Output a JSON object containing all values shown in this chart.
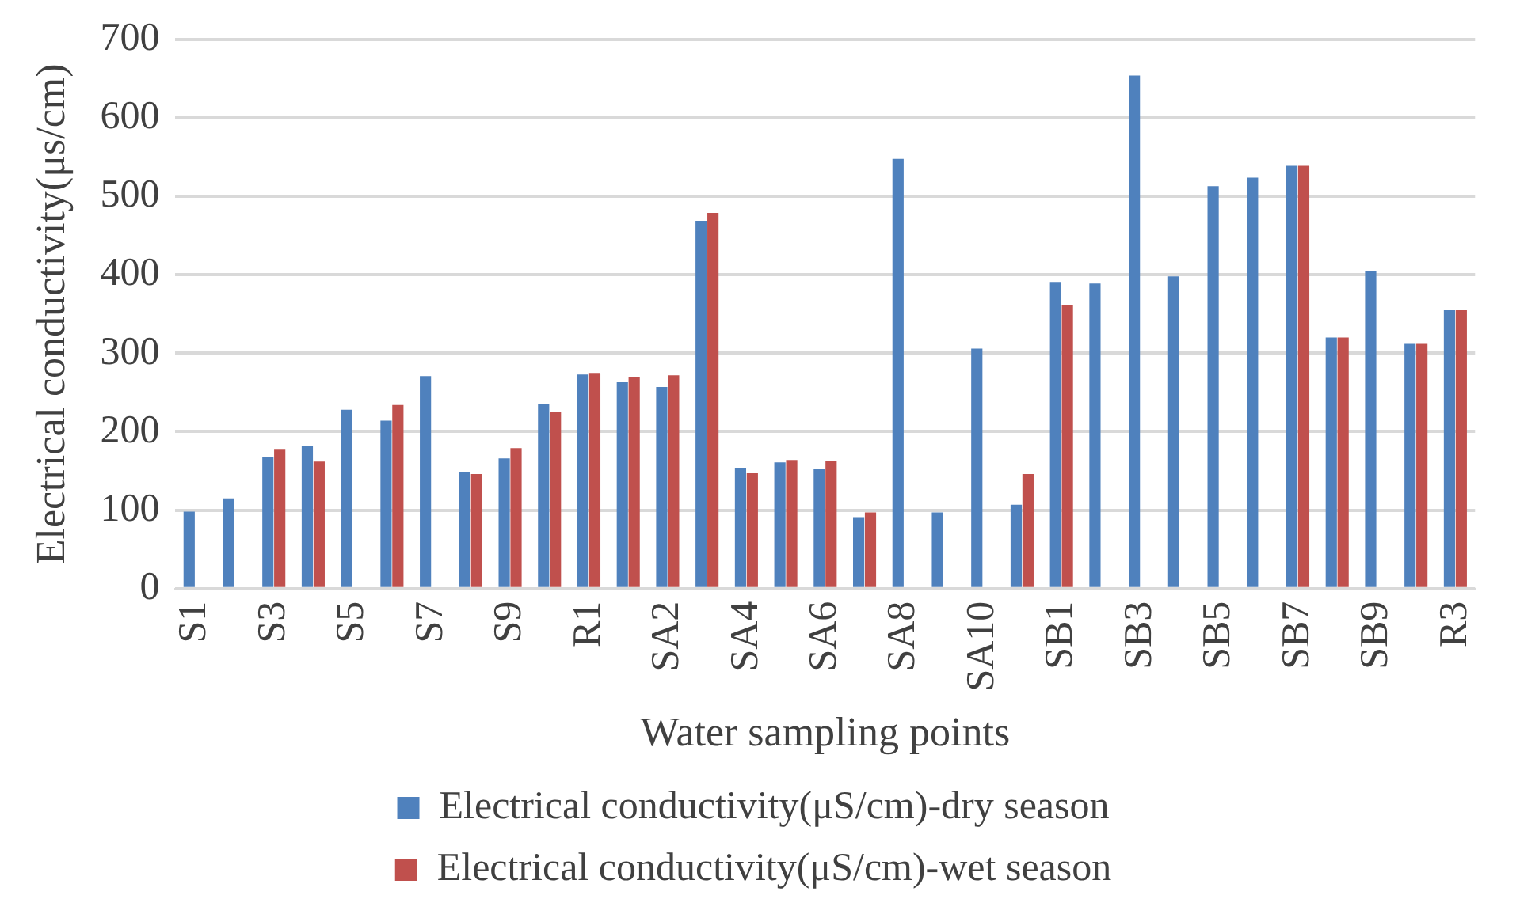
{
  "chart_data": {
    "type": "bar",
    "xlabel": "Water sampling points",
    "ylabel": "Electrical conductivity(μs/cm)",
    "categories": [
      "S1",
      null,
      "S3",
      null,
      "S5",
      null,
      "S7",
      null,
      "S9",
      null,
      "R1",
      null,
      "SA2",
      null,
      "SA4",
      null,
      "SA6",
      null,
      "SA8",
      null,
      "SA10",
      null,
      "SB1",
      null,
      "SB3",
      null,
      "SB5",
      null,
      "SB7",
      null,
      "SB9",
      null,
      "R3"
    ],
    "series": [
      {
        "name": "Electrical conductivity(μS/cm)-dry season",
        "color": "#4f81bd",
        "values": [
          98,
          115,
          168,
          182,
          228,
          214,
          271,
          149,
          166,
          235,
          273,
          263,
          257,
          469,
          154,
          161,
          152,
          91,
          548,
          97,
          306,
          107,
          391,
          389,
          654,
          398,
          513,
          524,
          539,
          320,
          405,
          312,
          355
        ]
      },
      {
        "name": "Electrical conductivity(μS/cm)-wet season",
        "color": "#c0504d",
        "values": [
          null,
          null,
          178,
          162,
          null,
          234,
          null,
          146,
          179,
          225,
          275,
          269,
          272,
          479,
          147,
          164,
          163,
          97,
          null,
          null,
          null,
          146,
          362,
          null,
          null,
          null,
          null,
          null,
          539,
          320,
          null,
          312,
          355
        ]
      }
    ],
    "ylim": [
      0,
      700
    ],
    "yticks": [
      0,
      100,
      200,
      300,
      400,
      500,
      600,
      700
    ],
    "grid": "y",
    "legend": "bottom"
  }
}
